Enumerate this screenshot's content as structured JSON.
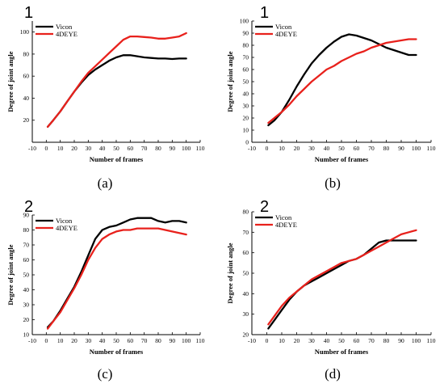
{
  "colors": {
    "vicon": "#000000",
    "fourdeye": "#e8211c",
    "axis": "#000000"
  },
  "x_label": "Number of frames",
  "y_label": "Degree of joint angle",
  "legend_labels": [
    "Vicon",
    "4DEYE"
  ],
  "chart_data": [
    {
      "type": "line",
      "panel_number": "1",
      "caption": "(a)",
      "xlabel": "Number of frames",
      "ylabel": "Degree of joint angle",
      "xlim": [
        -10,
        110
      ],
      "ylim": [
        0,
        110
      ],
      "xticks": [
        -10,
        0,
        10,
        20,
        30,
        40,
        50,
        60,
        70,
        80,
        90,
        100,
        110
      ],
      "yticks": [
        20,
        40,
        60,
        80,
        100
      ],
      "legend_position": "top-left",
      "series": [
        {
          "name": "Vicon",
          "x": [
            1,
            5,
            10,
            15,
            20,
            25,
            30,
            35,
            40,
            45,
            50,
            55,
            60,
            65,
            70,
            75,
            80,
            85,
            90,
            95,
            100
          ],
          "y": [
            14,
            20,
            28,
            37,
            46,
            54,
            61,
            66,
            70,
            74,
            77,
            79,
            79,
            78,
            77,
            76.5,
            76,
            76,
            75.5,
            76,
            76
          ]
        },
        {
          "name": "4DEYE",
          "x": [
            1,
            5,
            10,
            15,
            20,
            25,
            30,
            35,
            40,
            45,
            50,
            55,
            60,
            65,
            70,
            75,
            80,
            85,
            90,
            95,
            100
          ],
          "y": [
            14,
            20,
            28,
            37,
            46,
            55,
            63,
            69,
            75,
            81,
            87,
            93,
            96,
            96,
            95.5,
            95,
            94,
            94,
            95,
            96,
            99
          ]
        }
      ]
    },
    {
      "type": "line",
      "panel_number": "1",
      "caption": "(b)",
      "xlabel": "Number of frames",
      "ylabel": "Degree of joint angle",
      "xlim": [
        -10,
        110
      ],
      "ylim": [
        0,
        100
      ],
      "xticks": [
        -10,
        0,
        10,
        20,
        30,
        40,
        50,
        60,
        70,
        80,
        90,
        100,
        110
      ],
      "yticks": [
        0,
        10,
        20,
        30,
        40,
        50,
        60,
        70,
        80,
        90,
        100
      ],
      "legend_position": "top-left",
      "series": [
        {
          "name": "Vicon",
          "x": [
            1,
            5,
            10,
            15,
            20,
            25,
            30,
            35,
            40,
            45,
            50,
            55,
            60,
            65,
            70,
            75,
            80,
            85,
            90,
            95,
            100
          ],
          "y": [
            14,
            18,
            25,
            35,
            46,
            56,
            65,
            72,
            78,
            83,
            87,
            89,
            88,
            86,
            84,
            81,
            78,
            76,
            74,
            72,
            72
          ]
        },
        {
          "name": "4DEYE",
          "x": [
            1,
            5,
            10,
            15,
            20,
            25,
            30,
            35,
            40,
            45,
            50,
            55,
            60,
            65,
            70,
            75,
            80,
            85,
            90,
            95,
            100
          ],
          "y": [
            16,
            20,
            25,
            31,
            38,
            44,
            50,
            55,
            60,
            63,
            67,
            70,
            73,
            75,
            78,
            80,
            82,
            83,
            84,
            85,
            85
          ]
        }
      ]
    },
    {
      "type": "line",
      "panel_number": "2",
      "caption": "(c)",
      "xlabel": "Number of frames",
      "ylabel": "Degree of joint angle",
      "xlim": [
        -10,
        110
      ],
      "ylim": [
        10,
        90
      ],
      "xticks": [
        -10,
        0,
        10,
        20,
        30,
        40,
        50,
        60,
        70,
        80,
        90,
        100,
        110
      ],
      "yticks": [
        10,
        20,
        30,
        40,
        50,
        60,
        70,
        80,
        90
      ],
      "legend_position": "top-left",
      "series": [
        {
          "name": "Vicon",
          "x": [
            1,
            5,
            10,
            15,
            20,
            25,
            30,
            35,
            40,
            45,
            50,
            55,
            60,
            65,
            70,
            75,
            80,
            85,
            90,
            95,
            100
          ],
          "y": [
            15,
            19,
            26,
            34,
            42,
            52,
            63,
            74,
            80,
            82,
            83,
            85,
            87,
            88,
            88,
            88,
            86,
            85,
            86,
            86,
            85
          ]
        },
        {
          "name": "4DEYE",
          "x": [
            1,
            5,
            10,
            15,
            20,
            25,
            30,
            35,
            40,
            45,
            50,
            55,
            60,
            65,
            70,
            75,
            80,
            85,
            90,
            95,
            100
          ],
          "y": [
            14,
            19,
            25,
            33,
            41,
            50,
            60,
            68,
            74,
            77,
            79,
            80,
            80,
            81,
            81,
            81,
            81,
            80,
            79,
            78,
            77
          ]
        }
      ]
    },
    {
      "type": "line",
      "panel_number": "2",
      "caption": "(d)",
      "xlabel": "Number of frames",
      "ylabel": "Degree of joint angle",
      "xlim": [
        -10,
        110
      ],
      "ylim": [
        20,
        80
      ],
      "xticks": [
        -10,
        0,
        10,
        20,
        30,
        40,
        50,
        60,
        70,
        80,
        90,
        100,
        110
      ],
      "yticks": [
        20,
        30,
        40,
        50,
        60,
        70,
        80
      ],
      "legend_position": "top-left",
      "series": [
        {
          "name": "Vicon",
          "x": [
            1,
            5,
            10,
            15,
            20,
            25,
            30,
            35,
            40,
            45,
            50,
            55,
            60,
            65,
            70,
            75,
            80,
            85,
            90,
            95,
            100
          ],
          "y": [
            23,
            27,
            32,
            37,
            41,
            44,
            46,
            48,
            50,
            52,
            54,
            56,
            57,
            59,
            62,
            65,
            66,
            66,
            66,
            66,
            66
          ]
        },
        {
          "name": "4DEYE",
          "x": [
            1,
            5,
            10,
            15,
            20,
            25,
            30,
            35,
            40,
            45,
            50,
            55,
            60,
            65,
            70,
            75,
            80,
            85,
            90,
            95,
            100
          ],
          "y": [
            25,
            29,
            34,
            38,
            41,
            44,
            47,
            49,
            51,
            53,
            55,
            56,
            57,
            59,
            61,
            63,
            65,
            67,
            69,
            70,
            71
          ]
        }
      ]
    }
  ]
}
